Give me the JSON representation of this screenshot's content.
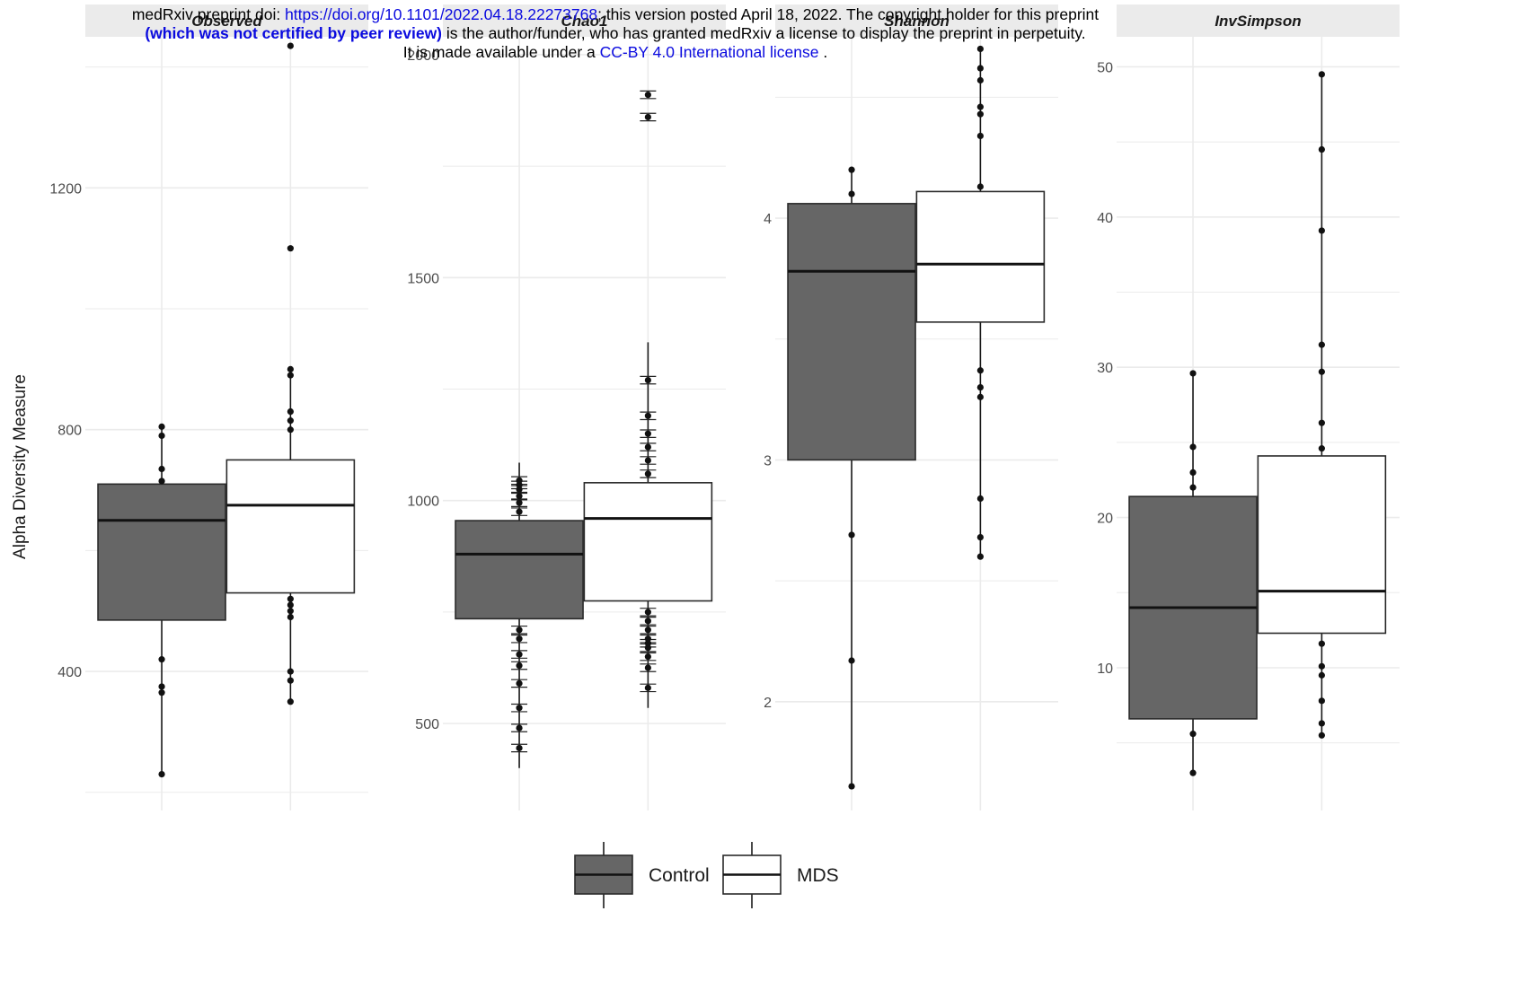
{
  "banner": {
    "line1_prefix": "medRxiv preprint doi: ",
    "line1_link": "https://doi.org/10.1101/2022.04.18.22273768",
    "line1_suffix": "; this version posted April 18, 2022. The copyright holder for this preprint",
    "line2_bold": "(which was not certified by peer review)",
    "line2_suffix": " is the author/funder, who has granted medRxiv a license to display the preprint in perpetuity.",
    "line3_prefix": "It is made available under a ",
    "line3_link": "CC-BY 4.0 International license",
    "line3_suffix": " ."
  },
  "colors": {
    "control": "#666666",
    "mds": "#ffffff",
    "grid": "#ebebeb",
    "strip_bg": "#ebebeb"
  },
  "chart_data": {
    "type": "boxplot",
    "ylabel": "Alpha Diversity Measure",
    "legend": {
      "placement": "bottom",
      "entries": [
        "Control",
        "MDS"
      ]
    },
    "groups": [
      "Control",
      "MDS"
    ],
    "panels": [
      {
        "title": "Observed",
        "ylim": [
          170,
          1450
        ],
        "yticks": [
          400,
          800,
          1200
        ],
        "boxes": [
          {
            "group": "Control",
            "q1": 485,
            "median": 650,
            "q3": 710,
            "whisker_low": 230,
            "whisker_high": 805,
            "points": [
              230,
              365,
              375,
              420,
              715,
              735,
              790,
              805
            ]
          },
          {
            "group": "MDS",
            "q1": 530,
            "median": 675,
            "q3": 750,
            "whisker_low": 350,
            "whisker_high": 900,
            "points": [
              350,
              385,
              400,
              490,
              500,
              510,
              520,
              800,
              815,
              830,
              890,
              900,
              1100,
              1435
            ]
          }
        ]
      },
      {
        "title": "Chao1",
        "ylim": [
          305,
          2040
        ],
        "yticks": [
          500,
          1000,
          1500,
          2000
        ],
        "boxes": [
          {
            "group": "Control",
            "q1": 735,
            "median": 880,
            "q3": 955,
            "whisker_low": 400,
            "whisker_high": 1085,
            "points": [
              445,
              490,
              535,
              590,
              630,
              655,
              690,
              710,
              975,
              995,
              1010,
              1025,
              1035,
              1045
            ]
          },
          {
            "group": "MDS",
            "q1": 775,
            "median": 960,
            "q3": 1040,
            "whisker_low": 535,
            "whisker_high": 1355,
            "points": [
              580,
              625,
              650,
              670,
              680,
              690,
              710,
              730,
              750,
              1060,
              1090,
              1120,
              1150,
              1190,
              1270,
              1860,
              1910
            ]
          }
        ]
      },
      {
        "title": "Shannon",
        "ylim": [
          1.55,
          4.75
        ],
        "yticks": [
          2,
          3,
          4
        ],
        "boxes": [
          {
            "group": "Control",
            "q1": 3.0,
            "median": 3.78,
            "q3": 4.06,
            "whisker_low": 1.65,
            "whisker_high": 4.2,
            "points": [
              1.65,
              2.17,
              2.69,
              4.1,
              4.2
            ]
          },
          {
            "group": "MDS",
            "q1": 3.57,
            "median": 3.81,
            "q3": 4.11,
            "whisker_low": 2.6,
            "whisker_high": 4.7,
            "points": [
              2.6,
              2.68,
              2.84,
              3.26,
              3.3,
              3.37,
              4.13,
              4.34,
              4.43,
              4.46,
              4.57,
              4.62,
              4.7
            ]
          }
        ]
      },
      {
        "title": "InvSimpson",
        "ylim": [
          0.5,
          52
        ],
        "yticks": [
          10,
          20,
          30,
          40,
          50
        ],
        "boxes": [
          {
            "group": "Control",
            "q1": 6.6,
            "median": 14,
            "q3": 21.4,
            "whisker_low": 3,
            "whisker_high": 29.6,
            "points": [
              3,
              5.6,
              22,
              23,
              24.7,
              29.6
            ]
          },
          {
            "group": "MDS",
            "q1": 12.3,
            "median": 15.1,
            "q3": 24.1,
            "whisker_low": 5.5,
            "whisker_high": 49.5,
            "points": [
              5.5,
              6.3,
              7.8,
              9.5,
              10.1,
              11.6,
              24.6,
              26.3,
              29.7,
              31.5,
              39.1,
              44.5,
              49.5
            ]
          }
        ]
      }
    ]
  }
}
